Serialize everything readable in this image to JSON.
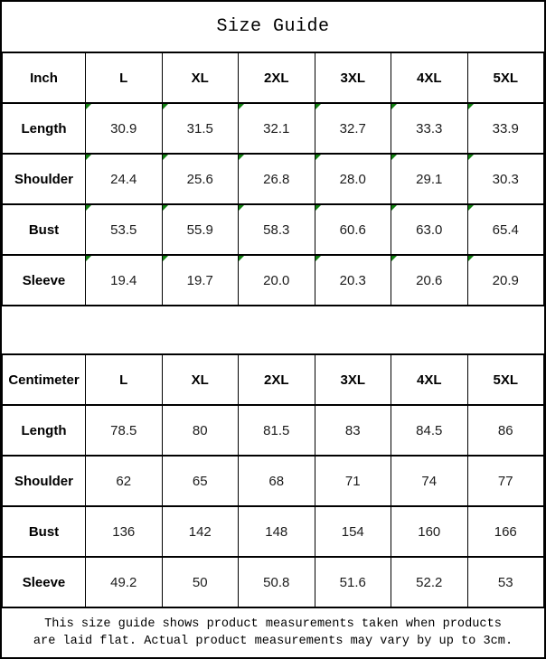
{
  "title": "Size Guide",
  "colors": {
    "flag-green": "#128012",
    "border": "#000000",
    "paper": "#ffffff",
    "text": "#000000"
  },
  "footer_note": {
    "line1": "This size guide shows product measurements taken when products",
    "line2": "are laid flat. Actual product measurements may vary by up to 3cm."
  },
  "chart_data": [
    {
      "type": "table",
      "title": "Size Guide",
      "unit_label": "Inch",
      "size_headers": [
        "L",
        "XL",
        "2XL",
        "3XL",
        "4XL",
        "5XL"
      ],
      "rows": [
        {
          "label": "Length",
          "values": [
            "30.9",
            "31.5",
            "32.1",
            "32.7",
            "33.3",
            "33.9"
          ]
        },
        {
          "label": "Shoulder",
          "values": [
            "24.4",
            "25.6",
            "26.8",
            "28.0",
            "29.1",
            "30.3"
          ]
        },
        {
          "label": "Bust",
          "values": [
            "53.5",
            "55.9",
            "58.3",
            "60.6",
            "63.0",
            "65.4"
          ]
        },
        {
          "label": "Sleeve",
          "values": [
            "19.4",
            "19.7",
            "20.0",
            "20.3",
            "20.6",
            "20.9"
          ]
        }
      ],
      "notes": "each numeric cell has a small green triangle flag in its top-left corner"
    },
    {
      "type": "table",
      "unit_label": "Centimeter",
      "size_headers": [
        "L",
        "XL",
        "2XL",
        "3XL",
        "4XL",
        "5XL"
      ],
      "rows": [
        {
          "label": "Length",
          "values": [
            "78.5",
            "80",
            "81.5",
            "83",
            "84.5",
            "86"
          ]
        },
        {
          "label": "Shoulder",
          "values": [
            "62",
            "65",
            "68",
            "71",
            "74",
            "77"
          ]
        },
        {
          "label": "Bust",
          "values": [
            "136",
            "142",
            "148",
            "154",
            "160",
            "166"
          ]
        },
        {
          "label": "Sleeve",
          "values": [
            "49.2",
            "50",
            "50.8",
            "51.6",
            "52.2",
            "53"
          ]
        }
      ],
      "notes": "no flag triangles in this table"
    }
  ]
}
